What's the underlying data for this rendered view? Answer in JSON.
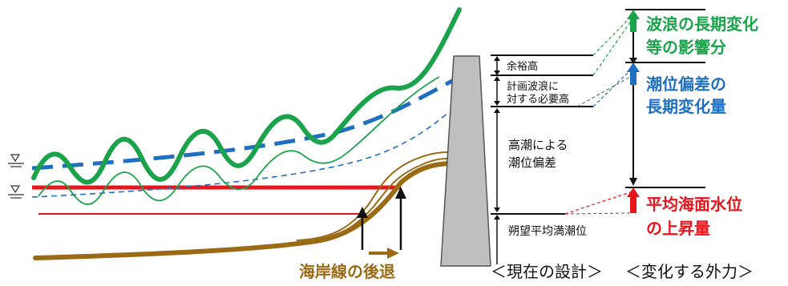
{
  "design_levels": {
    "margin_height": "余裕高",
    "wave_required_height_line1": "計画波浪に",
    "wave_required_height_line2": "対する必要高",
    "storm_surge_line1": "高潮による",
    "storm_surge_line2": "潮位偏差",
    "mean_high_water": "朔望平均満潮位"
  },
  "external_forces": {
    "wave_change_line1": "波浪の長期変化",
    "wave_change_line2": "等の影響分",
    "tide_deviation_line1": "潮位偏差の",
    "tide_deviation_line2": "長期変化量",
    "sea_level_rise_line1": "平均海面水位",
    "sea_level_rise_line2": "の上昇量"
  },
  "shoreline_retreat": "海岸線の後退",
  "captions": {
    "current_design": "＜現在の設計＞",
    "changing_forces": "＜変化する外力＞"
  },
  "colors": {
    "green": "#1aa34a",
    "blue": "#1f6fc1",
    "red": "#e8141b",
    "brown": "#9a6a14",
    "wall": "#bfbfbf"
  },
  "icons": {
    "water_level_marker": "inverted-triangle-with-lines"
  }
}
